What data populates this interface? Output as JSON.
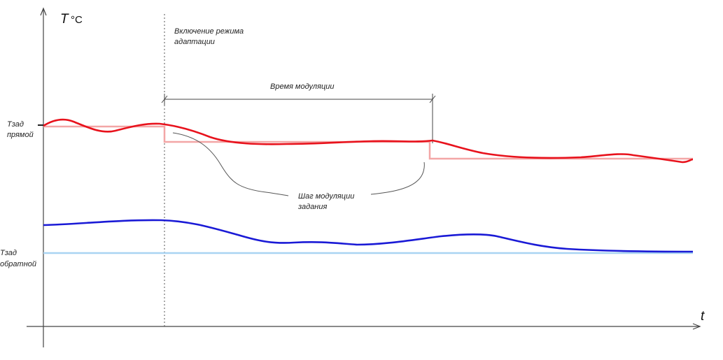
{
  "diagram": {
    "y_axis_label": "T",
    "y_axis_unit": "°C",
    "x_axis_label": "t",
    "setpoint_supply_label_line1": "Тзад",
    "setpoint_supply_label_line2": "прямой",
    "setpoint_return_label_line1": "Тзад",
    "setpoint_return_label_line2": "обратной",
    "adaptation_label_line1": "Включение режима",
    "adaptation_label_line2": "адаптации",
    "modulation_time_label": "Время модуляции",
    "modulation_step_label_line1": "Шаг модуляции",
    "modulation_step_label_line2": "задания",
    "colors": {
      "supply_curve": "#e8121c",
      "supply_setpoint": "#f3a6a6",
      "return_curve": "#1a1ad6",
      "return_setpoint": "#a9d4f2",
      "axes": "#444444"
    }
  }
}
